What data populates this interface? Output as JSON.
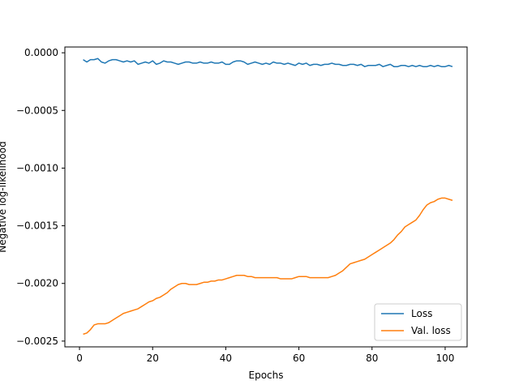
{
  "chart_data": {
    "type": "line",
    "title": "",
    "xlabel": "Epochs",
    "ylabel": "Negative log-likelihood",
    "xlim": [
      -4,
      106
    ],
    "ylim": [
      -0.00255,
      5e-05
    ],
    "x_ticks": [
      0,
      20,
      40,
      60,
      80,
      100
    ],
    "x_tick_labels": [
      "0",
      "20",
      "40",
      "60",
      "80",
      "100"
    ],
    "y_ticks": [
      0.0,
      -0.0005,
      -0.001,
      -0.0015,
      -0.002,
      -0.0025
    ],
    "y_tick_labels": [
      "0.0000",
      "−0.0005",
      "−0.0010",
      "−0.0015",
      "−0.0020",
      "−0.0025"
    ],
    "grid": false,
    "legend": {
      "position": "lower-right",
      "entries": [
        "Loss",
        "Val. loss"
      ]
    },
    "series": [
      {
        "name": "Loss",
        "color": "#1f77b4",
        "x": [
          1,
          2,
          3,
          4,
          5,
          6,
          7,
          8,
          9,
          10,
          11,
          12,
          13,
          14,
          15,
          16,
          17,
          18,
          19,
          20,
          21,
          22,
          23,
          24,
          25,
          26,
          27,
          28,
          29,
          30,
          31,
          32,
          33,
          34,
          35,
          36,
          37,
          38,
          39,
          40,
          41,
          42,
          43,
          44,
          45,
          46,
          47,
          48,
          49,
          50,
          51,
          52,
          53,
          54,
          55,
          56,
          57,
          58,
          59,
          60,
          61,
          62,
          63,
          64,
          65,
          66,
          67,
          68,
          69,
          70,
          71,
          72,
          73,
          74,
          75,
          76,
          77,
          78,
          79,
          80,
          81,
          82,
          83,
          84,
          85,
          86,
          87,
          88,
          89,
          90,
          91,
          92,
          93,
          94,
          95,
          96,
          97,
          98,
          99,
          100,
          101,
          102
        ],
        "values": [
          -6e-05,
          -8e-05,
          -6e-05,
          -6e-05,
          -5e-05,
          -8e-05,
          -9e-05,
          -7e-05,
          -6e-05,
          -6e-05,
          -7e-05,
          -8e-05,
          -7e-05,
          -8e-05,
          -7e-05,
          -0.0001,
          -9e-05,
          -8e-05,
          -9e-05,
          -7e-05,
          -0.0001,
          -9e-05,
          -7e-05,
          -8e-05,
          -8e-05,
          -9e-05,
          -0.0001,
          -9e-05,
          -8e-05,
          -8e-05,
          -9e-05,
          -9e-05,
          -8e-05,
          -9e-05,
          -9e-05,
          -8e-05,
          -9e-05,
          -9e-05,
          -8e-05,
          -0.0001,
          -0.0001,
          -8e-05,
          -7e-05,
          -7e-05,
          -8e-05,
          -0.0001,
          -9e-05,
          -8e-05,
          -9e-05,
          -0.0001,
          -9e-05,
          -0.0001,
          -8e-05,
          -9e-05,
          -9e-05,
          -0.0001,
          -9e-05,
          -0.0001,
          -0.00011,
          -9e-05,
          -0.0001,
          -9e-05,
          -0.00011,
          -0.0001,
          -0.0001,
          -0.00011,
          -0.0001,
          -0.0001,
          -9e-05,
          -0.0001,
          -0.0001,
          -0.00011,
          -0.00011,
          -0.0001,
          -0.0001,
          -0.00011,
          -0.0001,
          -0.00012,
          -0.00011,
          -0.00011,
          -0.00011,
          -0.0001,
          -0.00012,
          -0.00011,
          -0.0001,
          -0.00012,
          -0.00012,
          -0.00011,
          -0.00011,
          -0.00012,
          -0.00011,
          -0.00012,
          -0.00011,
          -0.00012,
          -0.00012,
          -0.00011,
          -0.00012,
          -0.00011,
          -0.00012,
          -0.00012,
          -0.00011,
          -0.00012
        ]
      },
      {
        "name": "Val. loss",
        "color": "#ff7f0e",
        "x": [
          1,
          2,
          3,
          4,
          5,
          6,
          7,
          8,
          9,
          10,
          11,
          12,
          13,
          14,
          15,
          16,
          17,
          18,
          19,
          20,
          21,
          22,
          23,
          24,
          25,
          26,
          27,
          28,
          29,
          30,
          31,
          32,
          33,
          34,
          35,
          36,
          37,
          38,
          39,
          40,
          41,
          42,
          43,
          44,
          45,
          46,
          47,
          48,
          49,
          50,
          51,
          52,
          53,
          54,
          55,
          56,
          57,
          58,
          59,
          60,
          61,
          62,
          63,
          64,
          65,
          66,
          67,
          68,
          69,
          70,
          71,
          72,
          73,
          74,
          75,
          76,
          77,
          78,
          79,
          80,
          81,
          82,
          83,
          84,
          85,
          86,
          87,
          88,
          89,
          90,
          91,
          92,
          93,
          94,
          95,
          96,
          97,
          98,
          99,
          100,
          101,
          102
        ],
        "values": [
          -0.00244,
          -0.00243,
          -0.0024,
          -0.00236,
          -0.00235,
          -0.00235,
          -0.00235,
          -0.00234,
          -0.00232,
          -0.0023,
          -0.00228,
          -0.00226,
          -0.00225,
          -0.00224,
          -0.00223,
          -0.00222,
          -0.0022,
          -0.00218,
          -0.00216,
          -0.00215,
          -0.00213,
          -0.00212,
          -0.0021,
          -0.00208,
          -0.00205,
          -0.00203,
          -0.00201,
          -0.002,
          -0.002,
          -0.00201,
          -0.00201,
          -0.00201,
          -0.002,
          -0.00199,
          -0.00199,
          -0.00198,
          -0.00198,
          -0.00197,
          -0.00197,
          -0.00196,
          -0.00195,
          -0.00194,
          -0.00193,
          -0.00193,
          -0.00193,
          -0.00194,
          -0.00194,
          -0.00195,
          -0.00195,
          -0.00195,
          -0.00195,
          -0.00195,
          -0.00195,
          -0.00195,
          -0.00196,
          -0.00196,
          -0.00196,
          -0.00196,
          -0.00195,
          -0.00194,
          -0.00194,
          -0.00194,
          -0.00195,
          -0.00195,
          -0.00195,
          -0.00195,
          -0.00195,
          -0.00195,
          -0.00194,
          -0.00193,
          -0.00191,
          -0.00189,
          -0.00186,
          -0.00183,
          -0.00182,
          -0.00181,
          -0.0018,
          -0.00179,
          -0.00177,
          -0.00175,
          -0.00173,
          -0.00171,
          -0.00169,
          -0.00167,
          -0.00165,
          -0.00162,
          -0.00158,
          -0.00155,
          -0.00151,
          -0.00149,
          -0.00147,
          -0.00145,
          -0.00141,
          -0.00136,
          -0.00132,
          -0.0013,
          -0.00129,
          -0.00127,
          -0.00126,
          -0.00126,
          -0.00127,
          -0.00128
        ]
      }
    ]
  }
}
